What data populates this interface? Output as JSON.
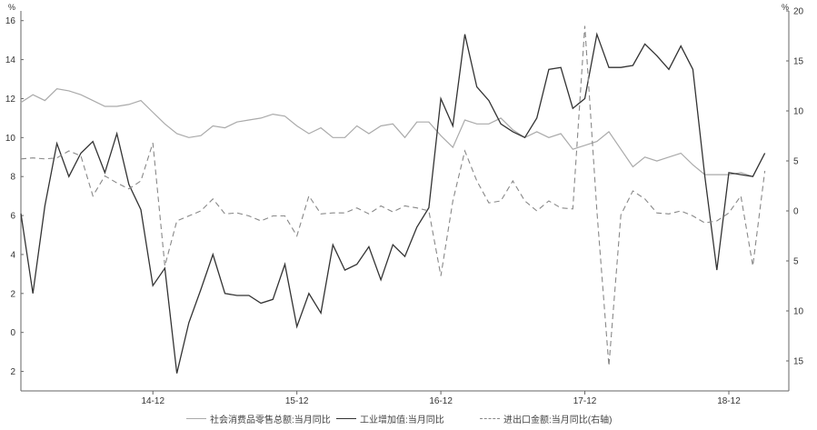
{
  "chart_data": {
    "type": "line",
    "y_unit_left": "%",
    "y_unit_right": "%",
    "ylim_left": [
      -3,
      16.5
    ],
    "ylim_right": [
      -18,
      20
    ],
    "yticks_left": [
      -2,
      0,
      2,
      4,
      6,
      8,
      10,
      12,
      14,
      16
    ],
    "yticks_left_labels": [
      "2",
      "0",
      "2",
      "4",
      "6",
      "8",
      "10",
      "12",
      "14",
      "16"
    ],
    "yticks_right": [
      -15,
      -10,
      -5,
      0,
      5,
      10,
      15,
      20
    ],
    "yticks_right_labels": [
      "15",
      "10",
      "5",
      "0",
      "5",
      "10",
      "15",
      "20"
    ],
    "xlim": [
      0,
      64
    ],
    "xticks": [
      {
        "index": 11,
        "label": "14-12"
      },
      {
        "index": 23,
        "label": "15-12"
      },
      {
        "index": 35,
        "label": "16-12"
      },
      {
        "index": 47,
        "label": "17-12"
      },
      {
        "index": 59,
        "label": "18-12"
      }
    ],
    "series": [
      {
        "name": "社会消费品零售总额:当月同比",
        "axis": "left",
        "style": "solid-gray",
        "values": [
          11.8,
          12.2,
          11.9,
          12.5,
          12.4,
          12.2,
          11.9,
          11.6,
          11.6,
          11.7,
          11.9,
          11.3,
          10.7,
          10.2,
          10.0,
          10.1,
          10.6,
          10.5,
          10.8,
          10.9,
          11.0,
          11.2,
          11.1,
          10.6,
          10.2,
          10.5,
          10.0,
          10.0,
          10.6,
          10.2,
          10.6,
          10.7,
          10.0,
          10.8,
          10.8,
          10.1,
          9.5,
          10.9,
          10.7,
          10.7,
          11.0,
          10.4,
          10.0,
          10.3,
          10.0,
          10.2,
          9.4,
          9.6,
          9.8,
          10.3,
          9.4,
          8.5,
          9.0,
          8.8,
          9.0,
          9.2,
          8.6,
          8.1,
          8.1,
          8.1,
          8.2,
          8.0,
          9.2
        ]
      },
      {
        "name": "工业增加值:当月同比",
        "axis": "left",
        "style": "solid-dark",
        "values": [
          6.1,
          2.0,
          6.5,
          9.7,
          8.0,
          9.2,
          9.8,
          8.2,
          10.2,
          7.6,
          6.3,
          2.4,
          3.3,
          -2.1,
          0.5,
          2.2,
          4.0,
          2.0,
          1.9,
          1.9,
          1.5,
          1.7,
          3.5,
          0.3,
          2.0,
          1.0,
          4.5,
          3.2,
          3.5,
          4.4,
          2.7,
          4.5,
          3.9,
          5.4,
          6.4,
          12.0,
          10.6,
          15.3,
          12.6,
          11.9,
          10.7,
          10.3,
          10.0,
          11.0,
          13.5,
          13.6,
          11.5,
          12.0,
          15.3,
          13.6,
          13.6,
          13.7,
          14.8,
          14.2,
          13.5,
          14.7,
          13.5,
          8.0,
          3.2,
          8.2,
          8.1,
          8.0,
          9.2
        ]
      },
      {
        "name": "进出口金额:当月同比(右轴)",
        "axis": "right",
        "style": "dashed",
        "values": [
          5.2,
          5.3,
          5.2,
          5.3,
          6.0,
          5.5,
          1.5,
          3.5,
          2.8,
          2.2,
          3.0,
          6.8,
          -5.5,
          -1.0,
          -0.5,
          0.0,
          1.2,
          -0.3,
          -0.2,
          -0.5,
          -1.0,
          -0.5,
          -0.5,
          -2.5,
          1.5,
          -0.3,
          -0.2,
          -0.2,
          0.3,
          -0.3,
          0.5,
          -0.1,
          0.5,
          0.3,
          0.0,
          -6.5,
          1.0,
          6.0,
          3.0,
          0.8,
          1.0,
          3.0,
          1.0,
          0.0,
          1.0,
          0.3,
          0.2,
          18.5,
          0.0,
          -15.5,
          -0.4,
          2.0,
          1.2,
          -0.2,
          -0.3,
          0.0,
          -0.5,
          -1.2,
          -1.0,
          -0.2,
          1.5,
          -5.5,
          4.0
        ]
      }
    ]
  }
}
